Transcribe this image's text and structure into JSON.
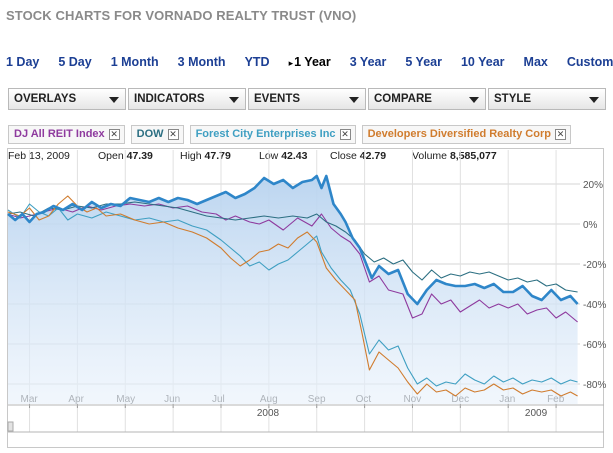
{
  "page": {
    "title": "STOCK CHARTS FOR VORNADO REALTY TRUST (VNO)"
  },
  "ranges": [
    "1 Day",
    "5 Day",
    "1 Month",
    "3 Month",
    "YTD",
    "1 Year",
    "3 Year",
    "5 Year",
    "10 Year",
    "Max",
    "Custom"
  ],
  "active_range": "1 Year",
  "menus": [
    "OVERLAYS",
    "INDICATORS",
    "EVENTS",
    "COMPARE",
    "STYLE"
  ],
  "legend": [
    {
      "label": "DJ All REIT Index",
      "color": "#8e3a9e"
    },
    {
      "label": "DOW",
      "color": "#2c6f82"
    },
    {
      "label": "Forest City Enterprises Inc",
      "color": "#3f9fc2"
    },
    {
      "label": "Developers Diversified Realty Corp",
      "color": "#d07c2e"
    }
  ],
  "quote": {
    "date": "Feb 13, 2009",
    "open_label": "Open",
    "open": "47.39",
    "high_label": "High",
    "high": "47.79",
    "low_label": "Low",
    "low": "42.43",
    "close_label": "Close",
    "close": "42.79",
    "volume_label": "Volume",
    "volume": "8,585,077"
  },
  "chart_data": {
    "type": "line",
    "y_unit": "% change",
    "y_ticks": [
      "20%",
      "0%",
      "-20%",
      "-40%",
      "-60%",
      "-80%"
    ],
    "y_tick_values": [
      20,
      0,
      -20,
      -40,
      -60,
      -80
    ],
    "ylim": [
      -90,
      27
    ],
    "x_tick_labels": [
      "Mar",
      "Apr",
      "May",
      "Jun",
      "Jul",
      "Aug",
      "Sep",
      "Oct",
      "Nov",
      "Dec",
      "Jan",
      "Feb"
    ],
    "x_tick_positions": [
      1,
      2,
      3,
      4,
      5,
      6,
      7,
      8,
      9,
      10,
      11,
      12
    ],
    "year_labels": [
      {
        "text": "2008",
        "at": 6
      },
      {
        "text": "2009",
        "at": 11.6
      }
    ],
    "xlim": [
      0.55,
      12.5
    ],
    "grid": true,
    "series": [
      {
        "name": "VNO",
        "color": "#2e86c9",
        "fill": true,
        "points": [
          [
            0.55,
            5
          ],
          [
            0.7,
            2
          ],
          [
            0.85,
            5
          ],
          [
            1.0,
            1
          ],
          [
            1.15,
            5
          ],
          [
            1.3,
            6
          ],
          [
            1.5,
            9
          ],
          [
            1.7,
            7
          ],
          [
            1.9,
            10
          ],
          [
            2.1,
            7
          ],
          [
            2.3,
            11
          ],
          [
            2.5,
            8
          ],
          [
            2.7,
            10
          ],
          [
            2.9,
            9
          ],
          [
            3.1,
            13
          ],
          [
            3.3,
            12
          ],
          [
            3.5,
            11
          ],
          [
            3.7,
            13
          ],
          [
            3.9,
            11
          ],
          [
            4.1,
            13
          ],
          [
            4.3,
            12
          ],
          [
            4.5,
            10
          ],
          [
            4.7,
            12
          ],
          [
            4.9,
            14
          ],
          [
            5.1,
            16
          ],
          [
            5.3,
            13
          ],
          [
            5.5,
            15
          ],
          [
            5.7,
            18
          ],
          [
            5.9,
            23
          ],
          [
            6.1,
            20
          ],
          [
            6.3,
            22
          ],
          [
            6.5,
            18
          ],
          [
            6.7,
            21
          ],
          [
            6.9,
            22
          ],
          [
            7.0,
            24
          ],
          [
            7.1,
            18
          ],
          [
            7.2,
            24
          ],
          [
            7.35,
            10
          ],
          [
            7.5,
            5
          ],
          [
            7.6,
            1
          ],
          [
            7.75,
            -7
          ],
          [
            7.9,
            -12
          ],
          [
            8.0,
            -18
          ],
          [
            8.15,
            -27
          ],
          [
            8.3,
            -21
          ],
          [
            8.5,
            -25
          ],
          [
            8.7,
            -23
          ],
          [
            8.9,
            -35
          ],
          [
            9.1,
            -40
          ],
          [
            9.3,
            -33
          ],
          [
            9.5,
            -28
          ],
          [
            9.7,
            -30
          ],
          [
            9.9,
            -31
          ],
          [
            10.1,
            -31
          ],
          [
            10.3,
            -30
          ],
          [
            10.5,
            -32
          ],
          [
            10.7,
            -30
          ],
          [
            10.9,
            -34
          ],
          [
            11.1,
            -34
          ],
          [
            11.3,
            -31
          ],
          [
            11.5,
            -36
          ],
          [
            11.7,
            -38
          ],
          [
            11.9,
            -33
          ],
          [
            12.1,
            -38
          ],
          [
            12.3,
            -36
          ],
          [
            12.45,
            -40
          ]
        ]
      },
      {
        "name": "DJ All REIT Index",
        "color": "#8e3a9e",
        "points": [
          [
            0.55,
            5
          ],
          [
            0.8,
            3
          ],
          [
            1.0,
            4
          ],
          [
            1.3,
            6
          ],
          [
            1.6,
            8
          ],
          [
            1.9,
            6
          ],
          [
            2.2,
            9
          ],
          [
            2.5,
            7
          ],
          [
            2.8,
            9
          ],
          [
            3.1,
            10
          ],
          [
            3.4,
            9
          ],
          [
            3.7,
            10
          ],
          [
            4.0,
            8
          ],
          [
            4.3,
            9
          ],
          [
            4.6,
            6
          ],
          [
            4.9,
            5
          ],
          [
            5.1,
            2
          ],
          [
            5.3,
            4
          ],
          [
            5.6,
            1
          ],
          [
            5.8,
            0
          ],
          [
            6.0,
            2
          ],
          [
            6.3,
            -3
          ],
          [
            6.6,
            3
          ],
          [
            6.9,
            -1
          ],
          [
            7.1,
            5
          ],
          [
            7.3,
            -2
          ],
          [
            7.5,
            -6
          ],
          [
            7.7,
            -9
          ],
          [
            7.9,
            -15
          ],
          [
            8.1,
            -29
          ],
          [
            8.3,
            -26
          ],
          [
            8.5,
            -33
          ],
          [
            8.8,
            -35
          ],
          [
            9.0,
            -47
          ],
          [
            9.2,
            -45
          ],
          [
            9.4,
            -35
          ],
          [
            9.6,
            -40
          ],
          [
            9.8,
            -38
          ],
          [
            10.0,
            -44
          ],
          [
            10.2,
            -41
          ],
          [
            10.4,
            -38
          ],
          [
            10.6,
            -42
          ],
          [
            10.8,
            -40
          ],
          [
            11.0,
            -42
          ],
          [
            11.2,
            -40
          ],
          [
            11.4,
            -45
          ],
          [
            11.6,
            -43
          ],
          [
            11.8,
            -42
          ],
          [
            12.0,
            -47
          ],
          [
            12.2,
            -44
          ],
          [
            12.45,
            -49
          ]
        ]
      },
      {
        "name": "DOW",
        "color": "#2c6f82",
        "points": [
          [
            0.55,
            5
          ],
          [
            0.8,
            6
          ],
          [
            1.1,
            4
          ],
          [
            1.4,
            8
          ],
          [
            1.7,
            7
          ],
          [
            2.0,
            9
          ],
          [
            2.3,
            8
          ],
          [
            2.6,
            10
          ],
          [
            2.9,
            10
          ],
          [
            3.2,
            11
          ],
          [
            3.5,
            10
          ],
          [
            3.8,
            9
          ],
          [
            4.1,
            8
          ],
          [
            4.4,
            6
          ],
          [
            4.7,
            4
          ],
          [
            5.0,
            3
          ],
          [
            5.3,
            2
          ],
          [
            5.6,
            3
          ],
          [
            5.9,
            4
          ],
          [
            6.2,
            3
          ],
          [
            6.5,
            4
          ],
          [
            6.8,
            3
          ],
          [
            7.0,
            5
          ],
          [
            7.2,
            1
          ],
          [
            7.4,
            -1
          ],
          [
            7.6,
            -4
          ],
          [
            7.8,
            -8
          ],
          [
            8.0,
            -15
          ],
          [
            8.2,
            -19
          ],
          [
            8.4,
            -17
          ],
          [
            8.6,
            -20
          ],
          [
            8.8,
            -18
          ],
          [
            9.0,
            -24
          ],
          [
            9.2,
            -28
          ],
          [
            9.4,
            -23
          ],
          [
            9.6,
            -27
          ],
          [
            9.8,
            -25
          ],
          [
            10.0,
            -26
          ],
          [
            10.2,
            -24
          ],
          [
            10.4,
            -25
          ],
          [
            10.6,
            -24
          ],
          [
            10.8,
            -26
          ],
          [
            11.0,
            -28
          ],
          [
            11.2,
            -27
          ],
          [
            11.4,
            -29
          ],
          [
            11.6,
            -28
          ],
          [
            11.8,
            -31
          ],
          [
            12.0,
            -30
          ],
          [
            12.2,
            -33
          ],
          [
            12.45,
            -34
          ]
        ]
      },
      {
        "name": "Forest City Enterprises Inc",
        "color": "#3f9fc2",
        "points": [
          [
            0.55,
            7
          ],
          [
            0.8,
            3
          ],
          [
            1.0,
            10
          ],
          [
            1.2,
            6
          ],
          [
            1.4,
            4
          ],
          [
            1.6,
            8
          ],
          [
            1.8,
            2
          ],
          [
            2.0,
            5
          ],
          [
            2.3,
            3
          ],
          [
            2.6,
            6
          ],
          [
            2.9,
            4
          ],
          [
            3.2,
            2
          ],
          [
            3.5,
            3
          ],
          [
            3.8,
            1
          ],
          [
            4.1,
            2
          ],
          [
            4.4,
            -1
          ],
          [
            4.7,
            -3
          ],
          [
            5.0,
            -8
          ],
          [
            5.2,
            -12
          ],
          [
            5.4,
            -16
          ],
          [
            5.6,
            -21
          ],
          [
            5.8,
            -19
          ],
          [
            6.0,
            -23
          ],
          [
            6.2,
            -20
          ],
          [
            6.4,
            -18
          ],
          [
            6.6,
            -14
          ],
          [
            6.8,
            -10
          ],
          [
            7.0,
            -6
          ],
          [
            7.1,
            -14
          ],
          [
            7.3,
            -22
          ],
          [
            7.5,
            -28
          ],
          [
            7.7,
            -33
          ],
          [
            7.9,
            -45
          ],
          [
            8.1,
            -65
          ],
          [
            8.3,
            -58
          ],
          [
            8.5,
            -63
          ],
          [
            8.7,
            -61
          ],
          [
            8.9,
            -72
          ],
          [
            9.1,
            -80
          ],
          [
            9.3,
            -77
          ],
          [
            9.5,
            -81
          ],
          [
            9.7,
            -79
          ],
          [
            9.9,
            -80
          ],
          [
            10.1,
            -75
          ],
          [
            10.3,
            -78
          ],
          [
            10.5,
            -80
          ],
          [
            10.7,
            -76
          ],
          [
            10.9,
            -79
          ],
          [
            11.1,
            -77
          ],
          [
            11.3,
            -80
          ],
          [
            11.5,
            -78
          ],
          [
            11.7,
            -79
          ],
          [
            11.9,
            -77
          ],
          [
            12.1,
            -80
          ],
          [
            12.3,
            -78
          ],
          [
            12.45,
            -79
          ]
        ]
      },
      {
        "name": "Developers Diversified Realty Corp",
        "color": "#d07c2e",
        "points": [
          [
            0.55,
            6
          ],
          [
            0.8,
            4
          ],
          [
            1.0,
            8
          ],
          [
            1.2,
            2
          ],
          [
            1.4,
            4
          ],
          [
            1.6,
            10
          ],
          [
            1.8,
            14
          ],
          [
            2.0,
            9
          ],
          [
            2.2,
            6
          ],
          [
            2.4,
            8
          ],
          [
            2.6,
            4
          ],
          [
            2.9,
            5
          ],
          [
            3.2,
            2
          ],
          [
            3.5,
            0
          ],
          [
            3.8,
            1
          ],
          [
            4.1,
            -2
          ],
          [
            4.4,
            -4
          ],
          [
            4.7,
            -7
          ],
          [
            5.0,
            -12
          ],
          [
            5.2,
            -17
          ],
          [
            5.4,
            -21
          ],
          [
            5.6,
            -18
          ],
          [
            5.8,
            -14
          ],
          [
            6.0,
            -13
          ],
          [
            6.2,
            -10
          ],
          [
            6.4,
            -12
          ],
          [
            6.6,
            -7
          ],
          [
            6.8,
            -4
          ],
          [
            7.0,
            -9
          ],
          [
            7.2,
            -22
          ],
          [
            7.4,
            -28
          ],
          [
            7.6,
            -33
          ],
          [
            7.8,
            -38
          ],
          [
            7.95,
            -55
          ],
          [
            8.1,
            -73
          ],
          [
            8.3,
            -64
          ],
          [
            8.5,
            -68
          ],
          [
            8.7,
            -72
          ],
          [
            8.9,
            -79
          ],
          [
            9.1,
            -85
          ],
          [
            9.3,
            -80
          ],
          [
            9.5,
            -84
          ],
          [
            9.7,
            -83
          ],
          [
            9.9,
            -86
          ],
          [
            10.1,
            -82
          ],
          [
            10.3,
            -84
          ],
          [
            10.5,
            -83
          ],
          [
            10.7,
            -80
          ],
          [
            10.9,
            -83
          ],
          [
            11.1,
            -82
          ],
          [
            11.3,
            -85
          ],
          [
            11.5,
            -83
          ],
          [
            11.7,
            -84
          ],
          [
            11.9,
            -83
          ],
          [
            12.1,
            -86
          ],
          [
            12.3,
            -84
          ],
          [
            12.45,
            -86
          ]
        ]
      }
    ]
  }
}
